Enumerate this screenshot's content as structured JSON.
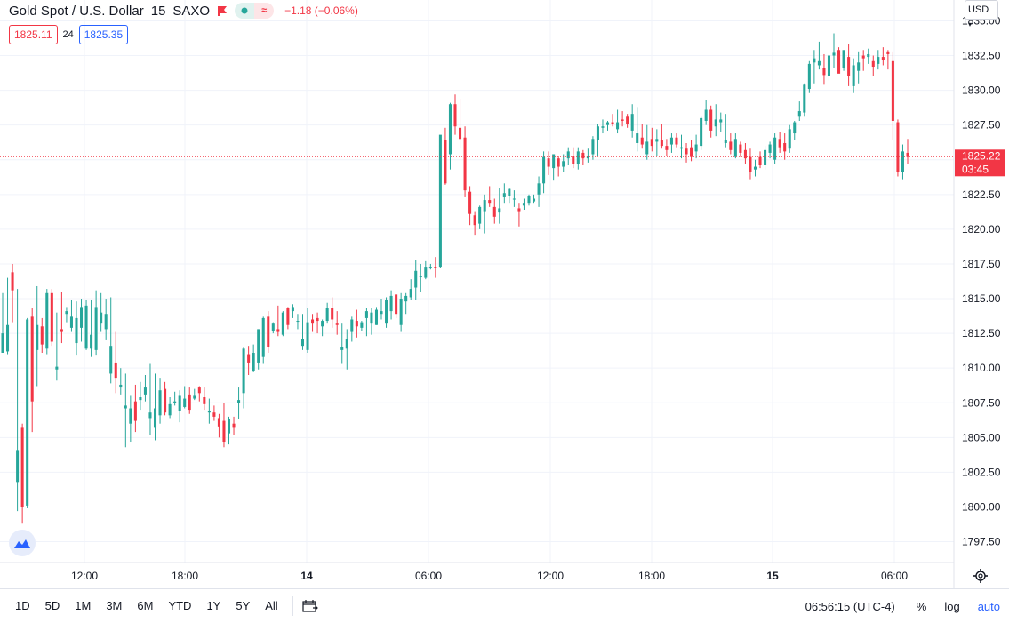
{
  "header": {
    "symbol": "Gold Spot / U.S. Dollar",
    "interval": "15",
    "exchange": "SAXO",
    "change": "−1.18 (−0.06%)",
    "flag_icon": "flag-icon",
    "pill_left_icon": "dot-icon",
    "pill_right_icon": "approx-icon"
  },
  "quotes": {
    "bid": "1825.11",
    "spread": "24",
    "ask": "1825.35"
  },
  "currency": "USD",
  "price_axis": {
    "ticks": [
      "1835.00",
      "1832.50",
      "1830.00",
      "1827.50",
      "1825.00",
      "1822.50",
      "1820.00",
      "1817.50",
      "1815.00",
      "1812.50",
      "1810.00",
      "1807.50",
      "1805.00",
      "1802.50",
      "1800.00",
      "1797.50"
    ],
    "current_price": "1825.22",
    "countdown": "03:45"
  },
  "time_axis": {
    "ticks": [
      "12:00",
      "18:00",
      "14",
      "06:00",
      "12:00",
      "18:00",
      "15",
      "06:00"
    ],
    "bold": [
      false,
      false,
      true,
      false,
      false,
      false,
      true,
      false
    ]
  },
  "bottom_bar": {
    "ranges": [
      "1D",
      "5D",
      "1M",
      "3M",
      "6M",
      "YTD",
      "1Y",
      "5Y",
      "All"
    ],
    "clock": "06:56:15 (UTC-4)",
    "percent": "%",
    "log": "log",
    "auto": "auto"
  },
  "colors": {
    "up": "#26a69a",
    "down": "#f23645",
    "accent": "#2962ff",
    "grid": "#f0f3fa"
  },
  "chart_data": {
    "type": "candlestick",
    "ylim": [
      1796.0,
      1836.5
    ],
    "x_ticks": [
      "12:00",
      "18:00",
      "14",
      "06:00",
      "12:00",
      "18:00",
      "15",
      "06:00"
    ],
    "series": [
      [
        1811.1,
        1815.4,
        1811.5,
        1812.5
      ],
      [
        1811.2,
        1816.5,
        1811.0,
        1813.1
      ],
      [
        1816.9,
        1817.5,
        1813.3,
        1815.6
      ],
      [
        1801.8,
        1815.7,
        1799.7,
        1804.1
      ],
      [
        1805.7,
        1806.0,
        1798.8,
        1800.0
      ],
      [
        1800.1,
        1813.6,
        1799.9,
        1813.5
      ],
      [
        1813.7,
        1814.3,
        1805.4,
        1807.6
      ],
      [
        1811.3,
        1815.9,
        1808.7,
        1813.1
      ],
      [
        1813.0,
        1813.6,
        1811.1,
        1811.7
      ],
      [
        1811.4,
        1815.7,
        1811.0,
        1815.4
      ],
      [
        1815.4,
        1815.7,
        1811.6,
        1811.9
      ],
      [
        1809.9,
        1814.0,
        1809.1,
        1810.1
      ],
      [
        1812.8,
        1815.5,
        1811.8,
        1812.6
      ],
      [
        1813.9,
        1814.4,
        1813.3,
        1814.1
      ],
      [
        1812.9,
        1814.9,
        1812.6,
        1813.7
      ],
      [
        1811.8,
        1814.8,
        1810.9,
        1813.6
      ],
      [
        1812.9,
        1815.0,
        1811.9,
        1814.4
      ],
      [
        1811.4,
        1814.9,
        1811.3,
        1814.5
      ],
      [
        1811.4,
        1814.9,
        1810.8,
        1812.4
      ],
      [
        1811.3,
        1815.6,
        1810.9,
        1814.4
      ],
      [
        1813.2,
        1815.4,
        1812.6,
        1814.0
      ],
      [
        1812.8,
        1815.0,
        1812.0,
        1813.9
      ],
      [
        1809.6,
        1815.1,
        1808.9,
        1811.6
      ],
      [
        1810.4,
        1812.6,
        1808.2,
        1809.3
      ],
      [
        1808.6,
        1810.0,
        1808.1,
        1808.8
      ],
      [
        1807.1,
        1809.6,
        1804.3,
        1807.3
      ],
      [
        1806.0,
        1808.0,
        1804.7,
        1807.1
      ],
      [
        1807.6,
        1808.8,
        1805.4,
        1806.2
      ],
      [
        1807.7,
        1809.0,
        1807.0,
        1807.9
      ],
      [
        1808.1,
        1809.5,
        1807.6,
        1808.6
      ],
      [
        1806.4,
        1810.3,
        1805.2,
        1806.8
      ],
      [
        1805.7,
        1809.6,
        1804.8,
        1807.1
      ],
      [
        1806.6,
        1809.3,
        1806.0,
        1808.4
      ],
      [
        1808.5,
        1809.0,
        1806.6,
        1806.8
      ],
      [
        1806.6,
        1807.9,
        1806.4,
        1807.4
      ],
      [
        1807.5,
        1808.3,
        1807.3,
        1807.6
      ],
      [
        1806.9,
        1808.4,
        1806.1,
        1808.0
      ],
      [
        1807.2,
        1808.7,
        1807.1,
        1807.8
      ],
      [
        1808.1,
        1808.6,
        1806.7,
        1807.0
      ],
      [
        1807.8,
        1808.5,
        1807.7,
        1808.0
      ],
      [
        1808.6,
        1808.7,
        1807.6,
        1808.2
      ],
      [
        1807.9,
        1808.6,
        1807.0,
        1807.4
      ],
      [
        1806.8,
        1807.8,
        1806.0,
        1806.9
      ],
      [
        1806.8,
        1807.3,
        1806.2,
        1806.5
      ],
      [
        1806.4,
        1806.7,
        1805.0,
        1805.8
      ],
      [
        1806.2,
        1807.5,
        1804.3,
        1804.7
      ],
      [
        1805.3,
        1806.5,
        1804.5,
        1806.3
      ],
      [
        1806.0,
        1806.5,
        1805.2,
        1805.7
      ],
      [
        1807.5,
        1808.6,
        1806.3,
        1807.7
      ],
      [
        1808.2,
        1811.5,
        1807.1,
        1811.4
      ],
      [
        1811.0,
        1811.6,
        1809.5,
        1810.4
      ],
      [
        1809.8,
        1811.7,
        1809.7,
        1811.1
      ],
      [
        1810.4,
        1812.8,
        1809.9,
        1812.8
      ],
      [
        1810.8,
        1813.7,
        1810.3,
        1813.6
      ],
      [
        1813.7,
        1814.1,
        1811.1,
        1811.5
      ],
      [
        1812.7,
        1813.3,
        1812.5,
        1813.2
      ],
      [
        1812.8,
        1814.5,
        1812.3,
        1812.6
      ],
      [
        1812.4,
        1814.1,
        1812.3,
        1814.0
      ],
      [
        1814.3,
        1814.4,
        1812.8,
        1813.1
      ],
      [
        1814.1,
        1814.6,
        1813.6,
        1814.4
      ],
      [
        1813.4,
        1813.9,
        1812.8,
        1813.4
      ],
      [
        1811.6,
        1813.9,
        1811.3,
        1812.1
      ],
      [
        1811.3,
        1814.3,
        1811.1,
        1813.3
      ],
      [
        1813.5,
        1813.9,
        1812.6,
        1813.2
      ],
      [
        1813.6,
        1814.0,
        1812.5,
        1813.4
      ],
      [
        1813.0,
        1813.5,
        1812.3,
        1813.4
      ],
      [
        1813.4,
        1814.7,
        1813.2,
        1814.3
      ],
      [
        1814.3,
        1815.1,
        1812.9,
        1813.5
      ],
      [
        1813.2,
        1814.1,
        1812.4,
        1813.1
      ],
      [
        1811.3,
        1813.2,
        1810.3,
        1811.5
      ],
      [
        1811.4,
        1812.8,
        1809.9,
        1812.1
      ],
      [
        1812.6,
        1813.7,
        1811.9,
        1813.5
      ],
      [
        1813.4,
        1814.2,
        1812.2,
        1813.0
      ],
      [
        1812.9,
        1813.4,
        1812.7,
        1813.3
      ],
      [
        1813.6,
        1814.3,
        1812.3,
        1814.1
      ],
      [
        1813.2,
        1814.3,
        1812.4,
        1814.0
      ],
      [
        1813.1,
        1814.4,
        1813.1,
        1814.2
      ],
      [
        1813.9,
        1815.0,
        1813.5,
        1814.1
      ],
      [
        1813.2,
        1815.1,
        1812.9,
        1814.9
      ],
      [
        1814.1,
        1815.6,
        1813.5,
        1815.2
      ],
      [
        1815.3,
        1815.3,
        1813.6,
        1813.9
      ],
      [
        1813.1,
        1815.4,
        1812.6,
        1815.0
      ],
      [
        1814.8,
        1815.4,
        1813.9,
        1815.2
      ],
      [
        1815.1,
        1816.4,
        1814.9,
        1815.7
      ],
      [
        1815.8,
        1817.8,
        1814.9,
        1817.0
      ],
      [
        1816.6,
        1817.5,
        1815.5,
        1816.6
      ],
      [
        1816.5,
        1817.7,
        1816.4,
        1817.3
      ],
      [
        1817.2,
        1817.5,
        1817.1,
        1817.3
      ],
      [
        1817.3,
        1818.0,
        1816.5,
        1817.2
      ],
      [
        1817.3,
        1826.7,
        1817.2,
        1826.8
      ],
      [
        1826.4,
        1827.3,
        1823.2,
        1823.3
      ],
      [
        1825.4,
        1829.1,
        1824.3,
        1829.0
      ],
      [
        1829.0,
        1829.7,
        1826.8,
        1827.4
      ],
      [
        1827.3,
        1829.4,
        1825.8,
        1826.5
      ],
      [
        1826.6,
        1827.4,
        1822.3,
        1822.8
      ],
      [
        1822.7,
        1823.1,
        1820.3,
        1821.1
      ],
      [
        1821.0,
        1821.3,
        1819.6,
        1820.3
      ],
      [
        1820.4,
        1821.7,
        1820.0,
        1821.6
      ],
      [
        1821.3,
        1822.5,
        1819.7,
        1822.1
      ],
      [
        1822.1,
        1823.1,
        1821.6,
        1821.9
      ],
      [
        1821.6,
        1822.2,
        1820.4,
        1820.9
      ],
      [
        1821.2,
        1823.0,
        1820.4,
        1821.5
      ],
      [
        1822.3,
        1823.3,
        1821.9,
        1822.6
      ],
      [
        1822.4,
        1823.0,
        1821.9,
        1822.9
      ],
      [
        1822.2,
        1822.8,
        1821.6,
        1822.2
      ],
      [
        1821.5,
        1821.9,
        1820.2,
        1821.3
      ],
      [
        1821.7,
        1822.2,
        1821.4,
        1821.9
      ],
      [
        1821.9,
        1822.5,
        1821.7,
        1822.4
      ],
      [
        1822.0,
        1822.5,
        1821.9,
        1822.2
      ],
      [
        1822.5,
        1823.8,
        1821.6,
        1823.3
      ],
      [
        1823.3,
        1825.6,
        1822.6,
        1825.2
      ],
      [
        1825.1,
        1825.6,
        1823.9,
        1824.5
      ],
      [
        1824.4,
        1825.2,
        1823.5,
        1825.4
      ],
      [
        1825.1,
        1825.3,
        1823.8,
        1824.5
      ],
      [
        1824.5,
        1825.4,
        1824.1,
        1824.9
      ],
      [
        1825.1,
        1825.9,
        1824.6,
        1825.6
      ],
      [
        1825.3,
        1825.9,
        1824.4,
        1824.7
      ],
      [
        1824.7,
        1825.9,
        1824.3,
        1825.6
      ],
      [
        1825.5,
        1825.7,
        1824.6,
        1825.1
      ],
      [
        1825.1,
        1825.8,
        1824.8,
        1825.3
      ],
      [
        1825.4,
        1826.7,
        1825.0,
        1826.5
      ],
      [
        1826.4,
        1827.6,
        1825.3,
        1827.4
      ],
      [
        1827.3,
        1827.9,
        1826.9,
        1827.4
      ],
      [
        1827.5,
        1827.8,
        1827.1,
        1827.7
      ],
      [
        1827.7,
        1828.3,
        1827.4,
        1827.6
      ],
      [
        1827.2,
        1828.6,
        1826.9,
        1827.7
      ],
      [
        1827.9,
        1828.5,
        1827.4,
        1827.8
      ],
      [
        1828.1,
        1828.3,
        1827.3,
        1827.6
      ],
      [
        1827.1,
        1829.0,
        1826.6,
        1828.3
      ],
      [
        1826.2,
        1828.8,
        1825.6,
        1826.9
      ],
      [
        1826.6,
        1827.6,
        1825.8,
        1826.1
      ],
      [
        1825.4,
        1827.5,
        1825.0,
        1826.3
      ],
      [
        1826.5,
        1827.3,
        1825.6,
        1826.0
      ],
      [
        1826.3,
        1827.2,
        1825.3,
        1826.5
      ],
      [
        1826.4,
        1827.6,
        1825.8,
        1826.0
      ],
      [
        1826.0,
        1826.5,
        1825.3,
        1825.7
      ],
      [
        1826.1,
        1826.9,
        1825.5,
        1826.6
      ],
      [
        1826.6,
        1826.9,
        1825.9,
        1826.1
      ],
      [
        1825.8,
        1826.8,
        1825.1,
        1825.9
      ],
      [
        1825.8,
        1826.2,
        1824.8,
        1825.4
      ],
      [
        1825.9,
        1826.4,
        1824.9,
        1825.2
      ],
      [
        1825.6,
        1826.8,
        1825.1,
        1826.1
      ],
      [
        1826.0,
        1828.1,
        1825.7,
        1828.0
      ],
      [
        1827.8,
        1829.3,
        1827.5,
        1828.6
      ],
      [
        1828.6,
        1828.9,
        1826.6,
        1827.1
      ],
      [
        1827.4,
        1829.0,
        1826.7,
        1827.9
      ],
      [
        1827.7,
        1828.4,
        1827.0,
        1827.9
      ],
      [
        1826.2,
        1828.3,
        1825.9,
        1826.4
      ],
      [
        1826.3,
        1826.9,
        1825.4,
        1825.7
      ],
      [
        1825.2,
        1826.9,
        1825.1,
        1826.5
      ],
      [
        1826.1,
        1826.3,
        1825.2,
        1825.5
      ],
      [
        1825.7,
        1826.2,
        1824.7,
        1825.1
      ],
      [
        1825.2,
        1825.8,
        1823.6,
        1824.1
      ],
      [
        1824.3,
        1825.0,
        1823.8,
        1824.5
      ],
      [
        1825.2,
        1825.6,
        1824.4,
        1824.6
      ],
      [
        1824.6,
        1826.0,
        1824.3,
        1825.7
      ],
      [
        1825.5,
        1826.3,
        1825.1,
        1826.1
      ],
      [
        1825.0,
        1826.9,
        1824.7,
        1826.6
      ],
      [
        1826.5,
        1827.0,
        1825.5,
        1825.9
      ],
      [
        1826.2,
        1826.9,
        1825.0,
        1825.6
      ],
      [
        1825.8,
        1827.5,
        1825.5,
        1827.2
      ],
      [
        1826.9,
        1827.8,
        1826.4,
        1827.7
      ],
      [
        1828.1,
        1829.2,
        1827.8,
        1828.5
      ],
      [
        1828.4,
        1830.5,
        1828.1,
        1830.4
      ],
      [
        1830.1,
        1832.1,
        1829.8,
        1831.9
      ],
      [
        1832.0,
        1832.9,
        1830.5,
        1832.3
      ],
      [
        1831.8,
        1833.5,
        1831.5,
        1832.1
      ],
      [
        1831.6,
        1832.6,
        1830.4,
        1831.1
      ],
      [
        1831.0,
        1832.6,
        1830.7,
        1832.5
      ],
      [
        1832.5,
        1834.1,
        1831.6,
        1832.7
      ],
      [
        1832.9,
        1833.1,
        1831.5,
        1831.2
      ],
      [
        1831.6,
        1832.5,
        1831.4,
        1832.9
      ],
      [
        1832.4,
        1833.3,
        1830.3,
        1831.0
      ],
      [
        1830.3,
        1832.3,
        1829.8,
        1831.8
      ],
      [
        1831.4,
        1832.8,
        1830.5,
        1832.0
      ],
      [
        1832.5,
        1832.9,
        1831.4,
        1832.3
      ],
      [
        1832.4,
        1833.0,
        1831.9,
        1832.6
      ],
      [
        1832.1,
        1832.5,
        1831.0,
        1831.7
      ],
      [
        1831.9,
        1832.9,
        1831.5,
        1832.4
      ],
      [
        1832.4,
        1833.1,
        1831.8,
        1832.2
      ],
      [
        1832.8,
        1832.9,
        1831.5,
        1832.6
      ],
      [
        1832.1,
        1832.8,
        1826.4,
        1827.8
      ],
      [
        1827.7,
        1827.9,
        1823.8,
        1824.1
      ],
      [
        1824.1,
        1826.1,
        1823.6,
        1825.6
      ],
      [
        1825.5,
        1826.5,
        1824.7,
        1825.2
      ]
    ]
  }
}
